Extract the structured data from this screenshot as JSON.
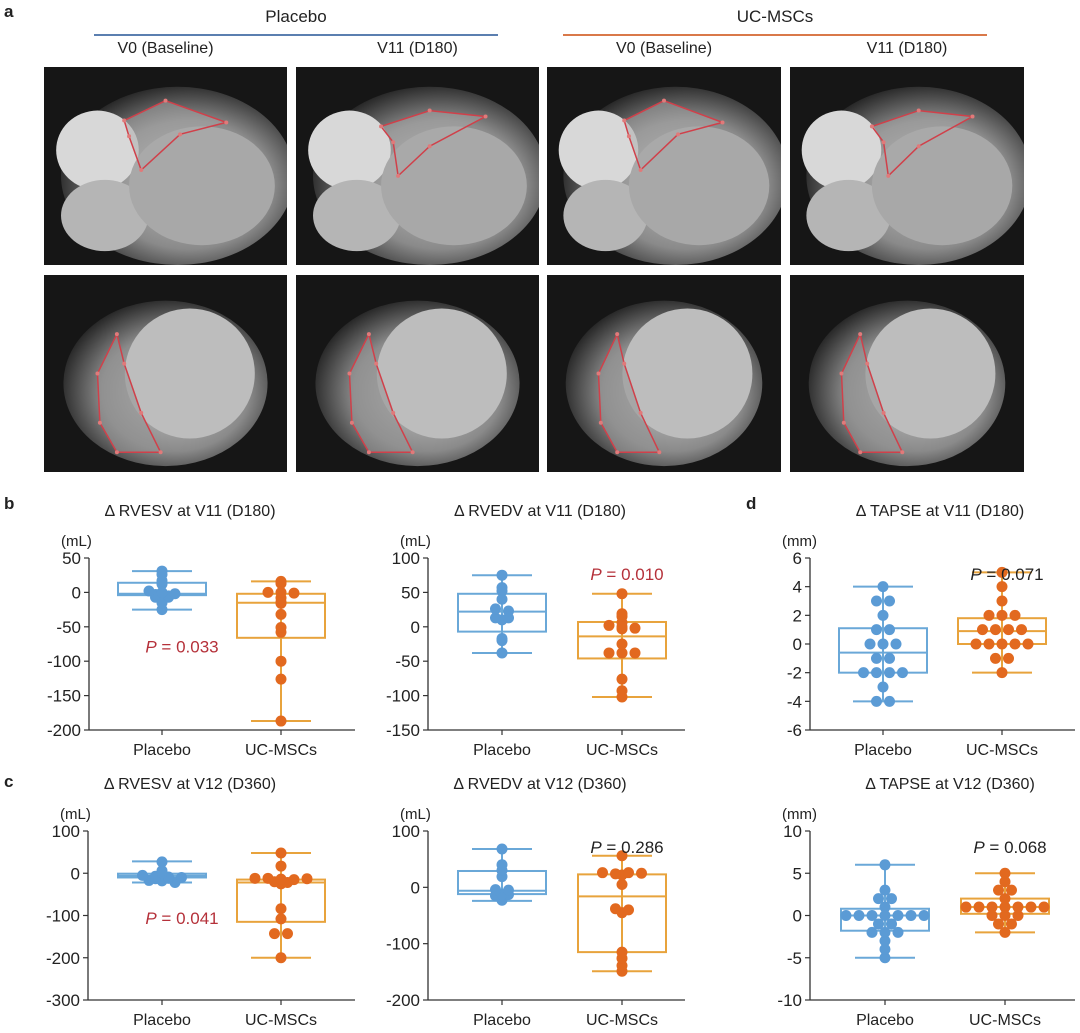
{
  "figure": {
    "panel_a": {
      "letter": "a",
      "groups": [
        {
          "name": "Placebo",
          "color": "#5b7fb0"
        },
        {
          "name": "UC-MSCs",
          "color": "#d9794a"
        }
      ],
      "columns": [
        "V0 (Baseline)",
        "V11 (D180)",
        "V0 (Baseline)",
        "V11 (D180)"
      ],
      "image_rows": [
        "four-chamber cine MRI with RV contour",
        "short-axis cine MRI with RV contour"
      ],
      "contour_color": "#d0404a"
    },
    "panel_letters": {
      "b": "b",
      "c": "c",
      "d": "d"
    }
  },
  "colors": {
    "placebo": "#5b9bd5",
    "ucmsc": "#e2691f",
    "ucmsc_box": "#e8a33c",
    "placebo_box": "#6aa8d8",
    "p_significant": "#b5313a",
    "p_ns": "#222222",
    "axis": "#333333"
  },
  "chart_data": [
    {
      "id": "b-left",
      "type": "box",
      "title": "Δ RVESV at V11 (D180)",
      "ylabel": "(mL)",
      "categories": [
        "Placebo",
        "UC-MSCs"
      ],
      "ylim": [
        -200,
        50
      ],
      "yticks": [
        50,
        0,
        -50,
        -100,
        -150,
        -200
      ],
      "p_value": {
        "text": "P = 0.033",
        "italic": "P",
        "rest": " = 0.033",
        "significant": true,
        "position": "below-placebo"
      },
      "series": [
        {
          "name": "Placebo",
          "whisker": [
            -25,
            31
          ],
          "box": [
            -4,
            14
          ],
          "median": -2,
          "points": [
            31,
            26,
            17,
            12,
            2,
            0,
            -2,
            -3,
            -5,
            -7,
            -7,
            -15,
            -25
          ]
        },
        {
          "name": "UC-MSCs",
          "whisker": [
            -187,
            16
          ],
          "box": [
            -66,
            -2
          ],
          "median": -15,
          "points": [
            16,
            13,
            0,
            0,
            -1,
            -8,
            -14,
            -16,
            -32,
            -51,
            -58,
            -100,
            -126,
            -187
          ]
        }
      ]
    },
    {
      "id": "b-right",
      "type": "box",
      "title": "Δ RVEDV at V11 (D180)",
      "ylabel": "(mL)",
      "categories": [
        "Placebo",
        "UC-MSCs"
      ],
      "ylim": [
        -150,
        100
      ],
      "yticks": [
        100,
        50,
        0,
        -50,
        -100,
        -150
      ],
      "p_value": {
        "text": "P = 0.010",
        "italic": "P",
        "rest": " = 0.010",
        "significant": true,
        "position": "above-ucmsc"
      },
      "series": [
        {
          "name": "Placebo",
          "whisker": [
            -38,
            75
          ],
          "box": [
            -7,
            48
          ],
          "median": 22,
          "points": [
            75,
            57,
            52,
            40,
            26,
            23,
            13,
            13,
            10,
            -17,
            -20,
            -38
          ]
        },
        {
          "name": "UC-MSCs",
          "whisker": [
            -102,
            48
          ],
          "box": [
            -46,
            7
          ],
          "median": -14,
          "points": [
            48,
            19,
            15,
            6,
            2,
            0,
            -3,
            -2,
            -25,
            -38,
            -38,
            -38,
            -76,
            -93,
            -102
          ]
        }
      ]
    },
    {
      "id": "d-top",
      "type": "box",
      "title": "Δ TAPSE at V11 (D180)",
      "ylabel": "(mm)",
      "categories": [
        "Placebo",
        "UC-MSCs"
      ],
      "ylim": [
        -6,
        6
      ],
      "yticks": [
        6,
        4,
        2,
        0,
        -2,
        -4,
        -6
      ],
      "p_value": {
        "text": "P = 0.071",
        "italic": "P",
        "rest": " = 0.071",
        "significant": false,
        "position": "above-ucmsc"
      },
      "series": [
        {
          "name": "Placebo",
          "whisker": [
            -4,
            4
          ],
          "box": [
            -2,
            1.1
          ],
          "median": -0.6,
          "points": [
            4,
            3,
            3,
            2,
            1,
            1,
            0,
            0,
            0,
            -1,
            -1,
            -2,
            -2,
            -2,
            -2,
            -3,
            -4,
            -4
          ]
        },
        {
          "name": "UC-MSCs",
          "whisker": [
            -2,
            5
          ],
          "box": [
            0,
            1.8
          ],
          "median": 0.9,
          "points": [
            5,
            4,
            3,
            2,
            2,
            2,
            1,
            1,
            1,
            1,
            0,
            0,
            0,
            0,
            0,
            -1,
            -1,
            -2
          ]
        }
      ]
    },
    {
      "id": "c-left",
      "type": "box",
      "title": "Δ RVESV at V12 (D360)",
      "ylabel": "(mL)",
      "categories": [
        "Placebo",
        "UC-MSCs"
      ],
      "ylim": [
        -300,
        100
      ],
      "yticks": [
        100,
        0,
        -100,
        -200,
        -300
      ],
      "p_value": {
        "text": "P = 0.041",
        "italic": "P",
        "rest": " = 0.041",
        "significant": true,
        "position": "below-placebo"
      },
      "series": [
        {
          "name": "Placebo",
          "whisker": [
            -22,
            28
          ],
          "box": [
            -10,
            -1
          ],
          "median": -6,
          "points": [
            27,
            6,
            1,
            -5,
            -7,
            -9,
            -10,
            -13,
            -12,
            -17,
            -18,
            -22
          ]
        },
        {
          "name": "UC-MSCs",
          "whisker": [
            -200,
            48
          ],
          "box": [
            -115,
            -15
          ],
          "median": -22,
          "points": [
            48,
            17,
            -12,
            -12,
            -14,
            -15,
            -20,
            -22,
            -25,
            -13,
            -84,
            -108,
            -143,
            -143,
            -200
          ]
        }
      ]
    },
    {
      "id": "c-right",
      "type": "box",
      "title": "Δ RVEDV at V12 (D360)",
      "ylabel": "(mL)",
      "categories": [
        "Placebo",
        "UC-MSCs"
      ],
      "ylim": [
        -200,
        100
      ],
      "yticks": [
        100,
        0,
        -100,
        -200
      ],
      "p_value": {
        "text": "P = 0.286",
        "italic": "P",
        "rest": " = 0.286",
        "significant": false,
        "position": "above-ucmsc"
      },
      "series": [
        {
          "name": "Placebo",
          "whisker": [
            -24,
            68
          ],
          "box": [
            -12,
            29
          ],
          "median": -6,
          "points": [
            68,
            40,
            30,
            19,
            -4,
            -5,
            -12,
            -15,
            -22,
            -23,
            -13
          ]
        },
        {
          "name": "UC-MSCs",
          "whisker": [
            -149,
            56
          ],
          "box": [
            -115,
            23
          ],
          "median": -16,
          "points": [
            56,
            26,
            22,
            24,
            26,
            25,
            5,
            -38,
            -45,
            -40,
            -115,
            -126,
            -139,
            -149
          ]
        }
      ]
    },
    {
      "id": "d-bottom",
      "type": "box",
      "title": "Δ TAPSE at V12 (D360)",
      "ylabel": "(mm)",
      "categories": [
        "Placebo",
        "UC-MSCs"
      ],
      "ylim": [
        -10,
        10
      ],
      "yticks": [
        10,
        5,
        0,
        -5,
        -10
      ],
      "p_value": {
        "text": "P = 0.068",
        "italic": "P",
        "rest": " = 0.068",
        "significant": false,
        "position": "above-ucmsc"
      },
      "series": [
        {
          "name": "Placebo",
          "whisker": [
            -5,
            6
          ],
          "box": [
            -1.8,
            0.8
          ],
          "median": 0,
          "points": [
            6,
            3,
            2,
            2,
            1,
            0,
            0,
            0,
            0,
            0,
            0,
            0,
            -1,
            -1,
            -2,
            -2,
            -2,
            -3,
            -4,
            -5
          ]
        },
        {
          "name": "UC-MSCs",
          "whisker": [
            -2,
            5
          ],
          "box": [
            0.2,
            2
          ],
          "median": 1,
          "points": [
            5,
            4,
            3,
            3,
            2,
            1,
            1,
            1,
            1,
            1,
            1,
            1,
            0,
            0,
            0,
            -1,
            -1,
            -2
          ]
        }
      ]
    }
  ]
}
